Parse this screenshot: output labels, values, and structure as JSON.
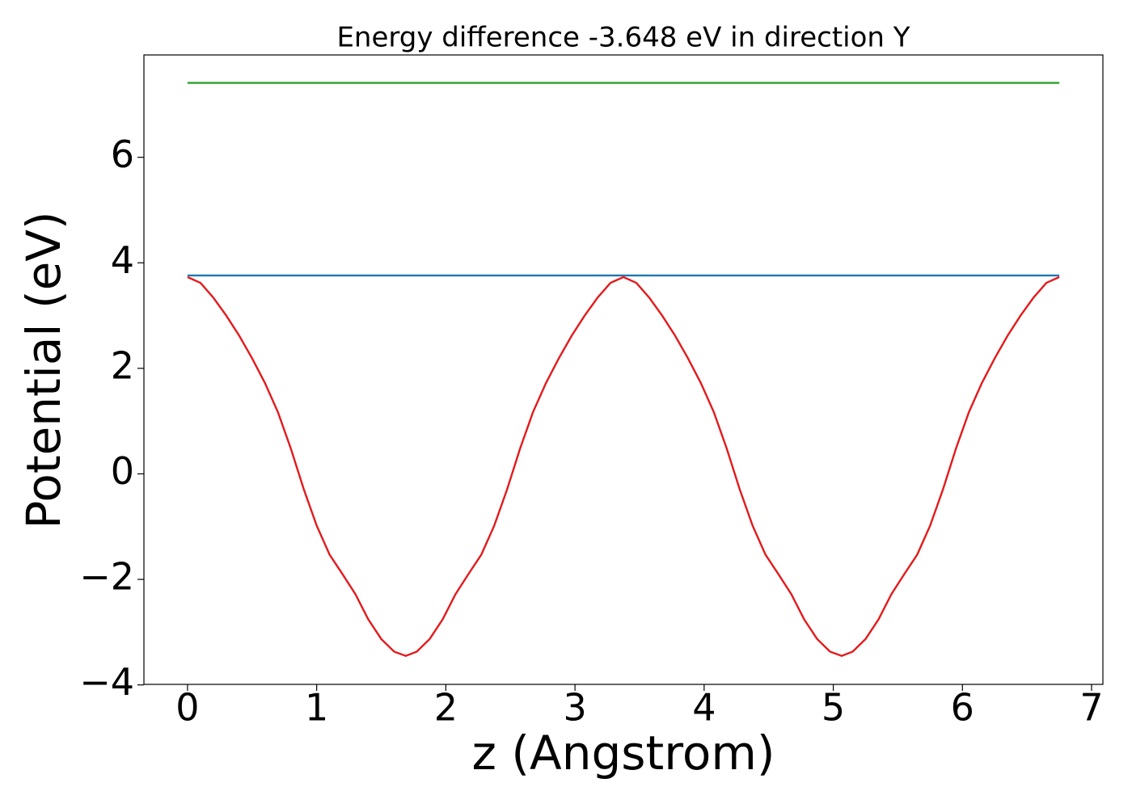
{
  "chart_data": {
    "type": "line",
    "title": "Energy difference -3.648 eV in direction Y",
    "xlabel": "z (Angstrom)",
    "ylabel": "Potential (eV)",
    "xlim": [
      -0.3375,
      7.0875
    ],
    "ylim": [
      -3.99,
      7.94
    ],
    "xticks": [
      0,
      1,
      2,
      3,
      4,
      5,
      6,
      7
    ],
    "yticks": [
      {
        "value": -4,
        "label": "−4"
      },
      {
        "value": -2,
        "label": "−2"
      },
      0,
      2,
      4,
      6
    ],
    "grid": false,
    "series": [
      {
        "color": "#e31a1c",
        "x": [
          0,
          0.1,
          0.2,
          0.3,
          0.4,
          0.5,
          0.6,
          0.7,
          0.8,
          0.9,
          1.0,
          1.1,
          1.2,
          1.3,
          1.4,
          1.5,
          1.6,
          1.69,
          1.775,
          1.875,
          1.975,
          2.075,
          2.175,
          2.275,
          2.375,
          2.475,
          2.575,
          2.675,
          2.775,
          2.875,
          2.975,
          3.075,
          3.175,
          3.275,
          3.375,
          3.475,
          3.575,
          3.675,
          3.775,
          3.875,
          3.975,
          4.075,
          4.175,
          4.275,
          4.375,
          4.475,
          4.575,
          4.675,
          4.775,
          4.875,
          4.975,
          5.065,
          5.15,
          5.25,
          5.35,
          5.45,
          5.55,
          5.65,
          5.75,
          5.85,
          5.95,
          6.05,
          6.15,
          6.25,
          6.35,
          6.45,
          6.55,
          6.65,
          6.75
        ],
        "values": [
          3.73,
          3.62,
          3.34,
          3.0,
          2.62,
          2.19,
          1.72,
          1.17,
          0.48,
          -0.29,
          -0.98,
          -1.53,
          -1.9,
          -2.28,
          -2.76,
          -3.13,
          -3.37,
          -3.45,
          -3.37,
          -3.13,
          -2.76,
          -2.28,
          -1.9,
          -1.53,
          -0.98,
          -0.29,
          0.48,
          1.17,
          1.72,
          2.19,
          2.62,
          3.0,
          3.34,
          3.62,
          3.73,
          3.62,
          3.34,
          3.0,
          2.62,
          2.19,
          1.72,
          1.17,
          0.48,
          -0.29,
          -0.98,
          -1.53,
          -1.9,
          -2.28,
          -2.76,
          -3.13,
          -3.37,
          -3.45,
          -3.37,
          -3.13,
          -2.76,
          -2.28,
          -1.9,
          -1.53,
          -0.98,
          -0.29,
          0.48,
          1.17,
          1.72,
          2.19,
          2.62,
          3.0,
          3.34,
          3.62,
          3.73
        ]
      },
      {
        "color": "#1f77b4",
        "x": [
          0,
          6.75
        ],
        "values": [
          3.76,
          3.76
        ]
      },
      {
        "color": "#2ca02c",
        "x": [
          0,
          6.75
        ],
        "values": [
          7.41,
          7.41
        ]
      }
    ]
  }
}
